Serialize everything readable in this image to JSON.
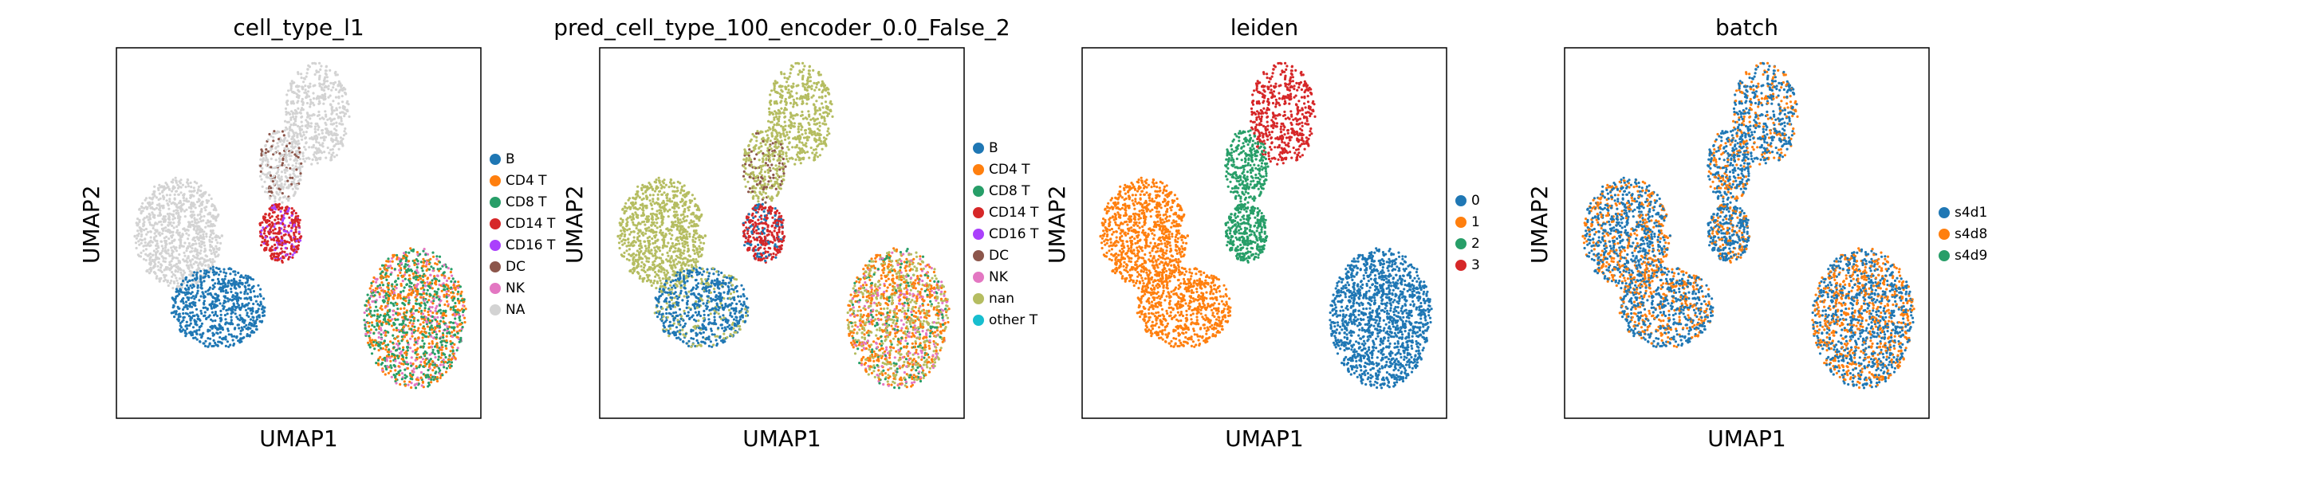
{
  "chart_data": [
    {
      "type": "scatter",
      "title": "cell_type_l1",
      "xlabel": "UMAP1",
      "ylabel": "UMAP2",
      "grid": false,
      "legend_position": "right",
      "legend": [
        {
          "label": "B",
          "color": "#1f77b4"
        },
        {
          "label": "CD4 T",
          "color": "#ff7f0e"
        },
        {
          "label": "CD8 T",
          "color": "#279e68"
        },
        {
          "label": "CD14 T",
          "color": "#d62728"
        },
        {
          "label": "CD16 T",
          "color": "#aa40fc"
        },
        {
          "label": "DC",
          "color": "#8c564b"
        },
        {
          "label": "NK",
          "color": "#e377c2"
        },
        {
          "label": "NA",
          "color": "#d3d3d3"
        }
      ]
    },
    {
      "type": "scatter",
      "title": "pred_cell_type_100_encoder_0.0_False_2",
      "xlabel": "UMAP1",
      "ylabel": "UMAP2",
      "grid": false,
      "legend_position": "right",
      "legend": [
        {
          "label": "B",
          "color": "#1f77b4"
        },
        {
          "label": "CD4 T",
          "color": "#ff7f0e"
        },
        {
          "label": "CD8 T",
          "color": "#279e68"
        },
        {
          "label": "CD14 T",
          "color": "#d62728"
        },
        {
          "label": "CD16 T",
          "color": "#aa40fc"
        },
        {
          "label": "DC",
          "color": "#8c564b"
        },
        {
          "label": "NK",
          "color": "#e377c2"
        },
        {
          "label": "nan",
          "color": "#b5bd61"
        },
        {
          "label": "other T",
          "color": "#17becf"
        }
      ]
    },
    {
      "type": "scatter",
      "title": "leiden",
      "xlabel": "UMAP1",
      "ylabel": "UMAP2",
      "grid": false,
      "legend_position": "right",
      "legend": [
        {
          "label": "0",
          "color": "#1f77b4"
        },
        {
          "label": "1",
          "color": "#ff7f0e"
        },
        {
          "label": "2",
          "color": "#279e68"
        },
        {
          "label": "3",
          "color": "#d62728"
        }
      ]
    },
    {
      "type": "scatter",
      "title": "batch",
      "xlabel": "UMAP1",
      "ylabel": "UMAP2",
      "grid": false,
      "legend_position": "right",
      "legend": [
        {
          "label": "s4d1",
          "color": "#1f77b4"
        },
        {
          "label": "s4d8",
          "color": "#ff7f0e"
        },
        {
          "label": "s4d9",
          "color": "#279e68"
        }
      ]
    }
  ]
}
